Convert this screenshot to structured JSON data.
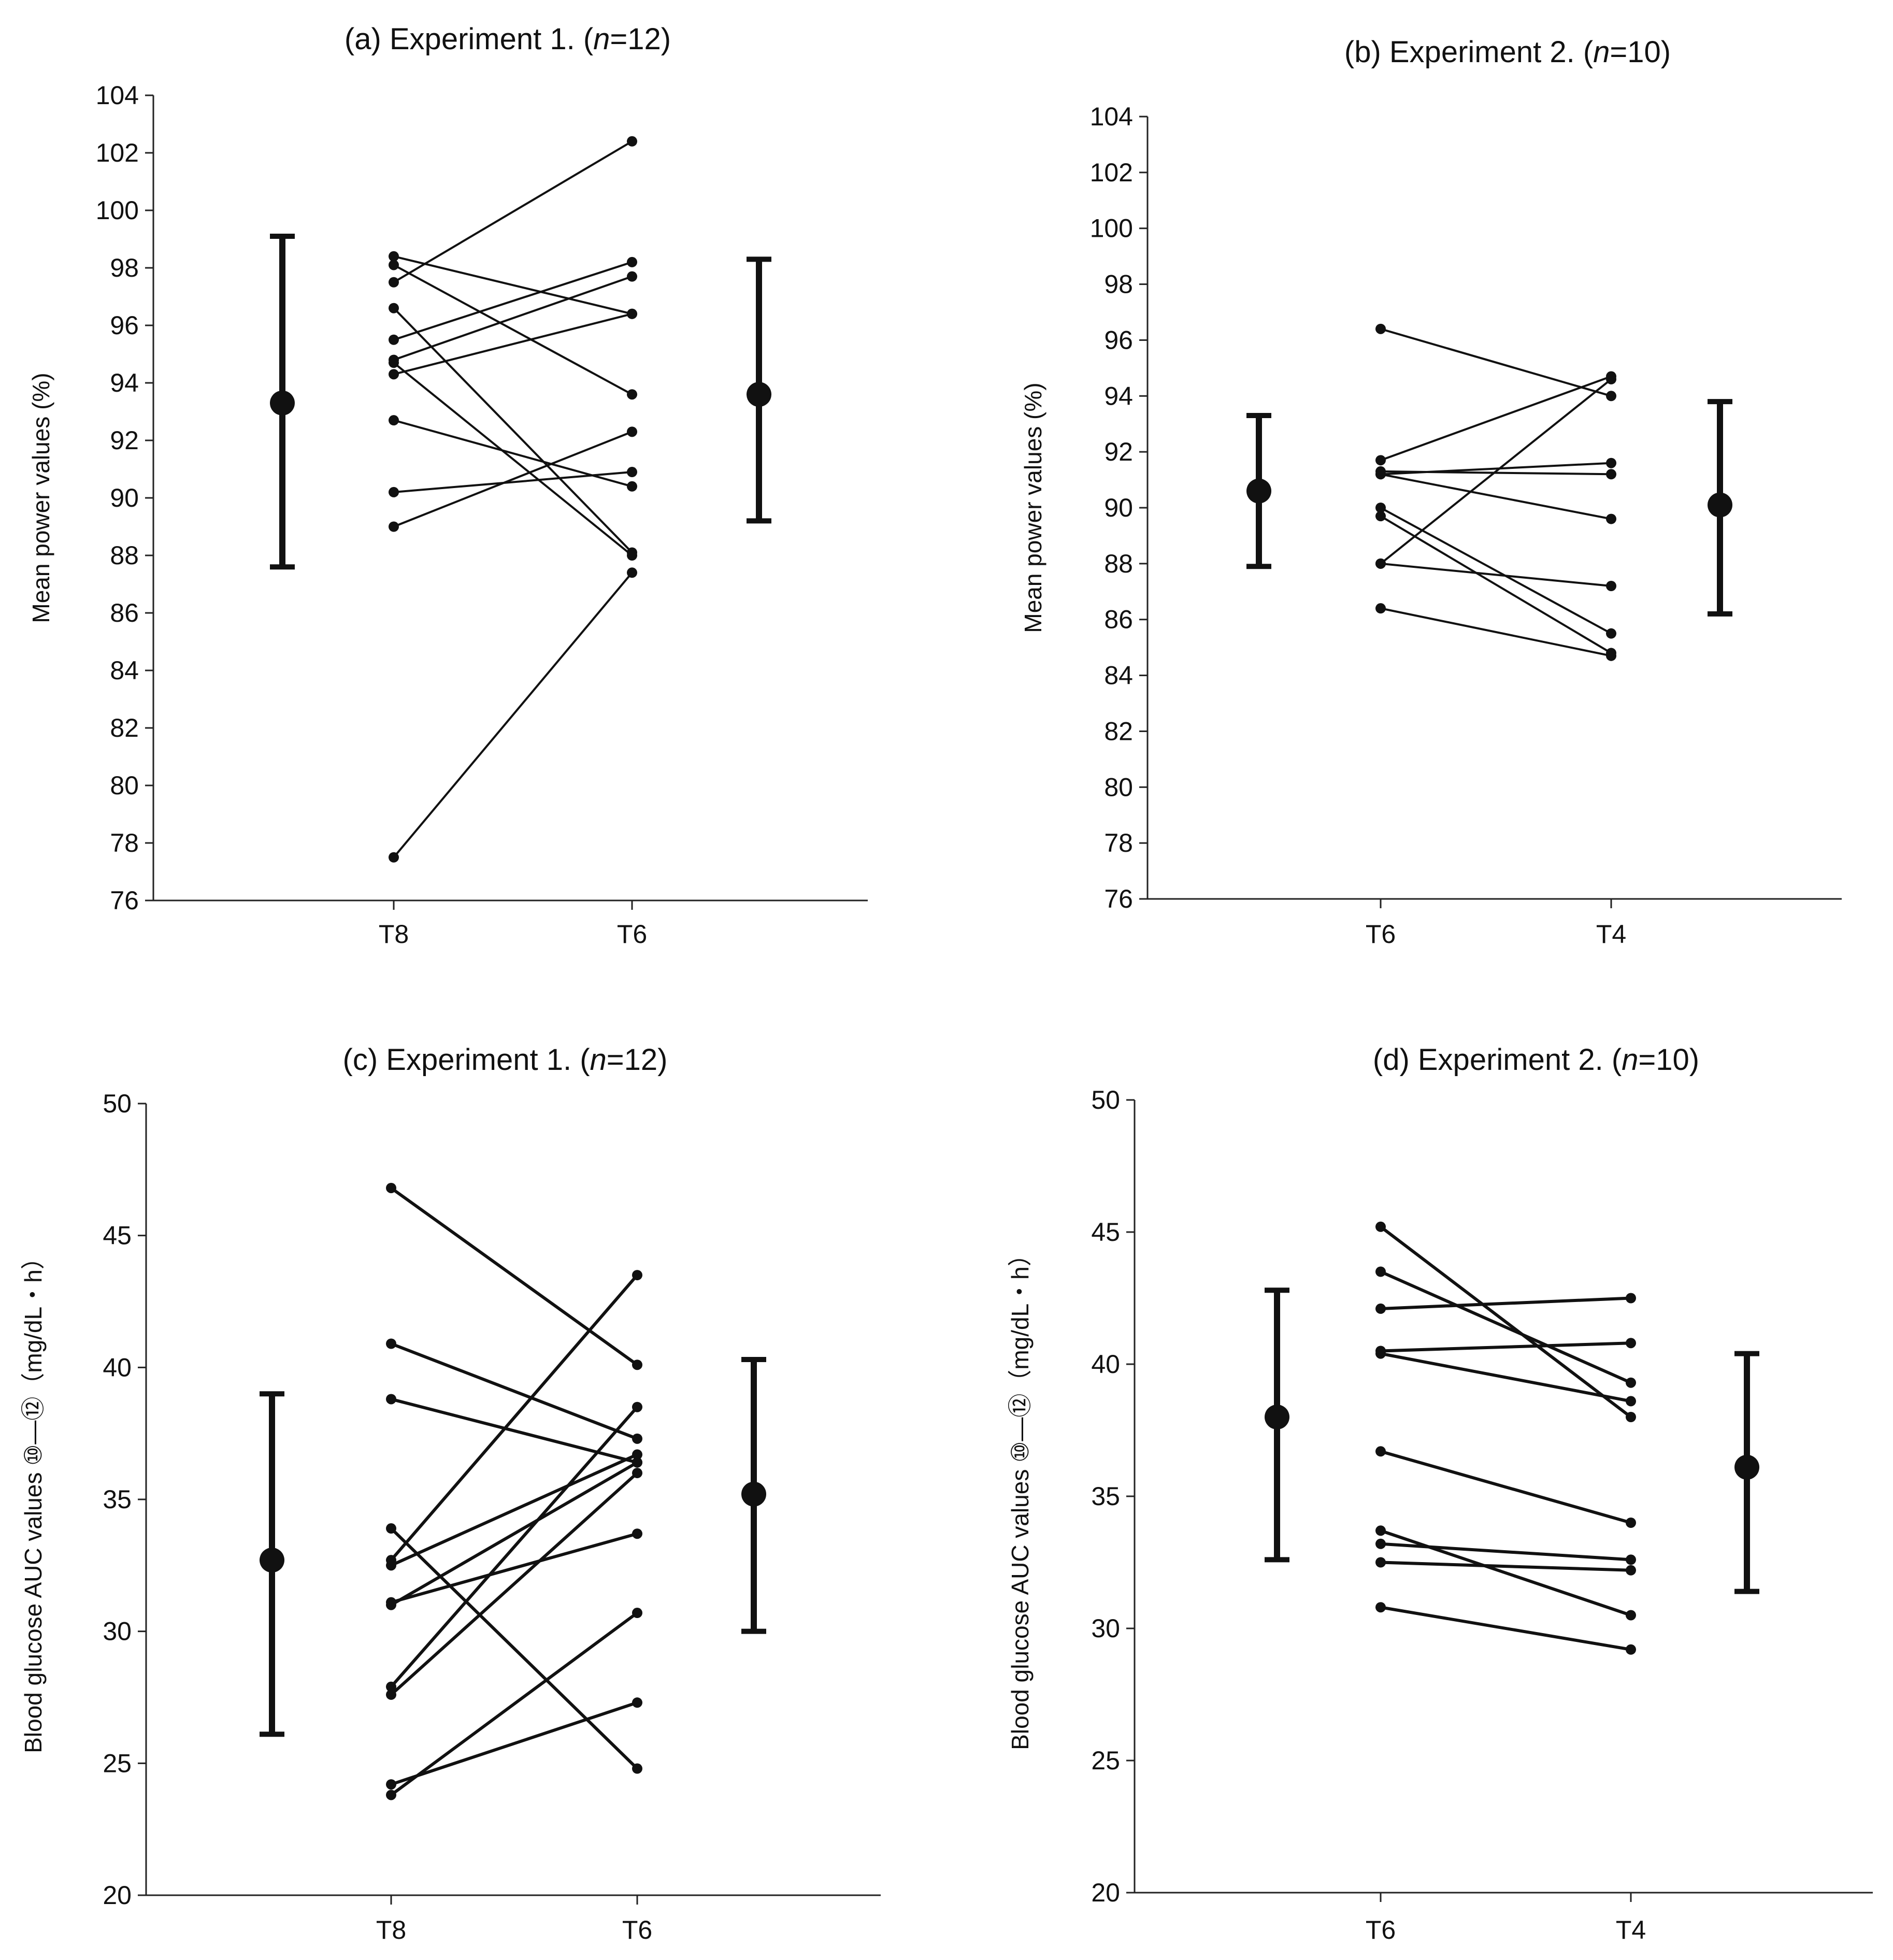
{
  "chart_data": [
    {
      "panel": "a",
      "type": "scatter",
      "title_prefix": "(a) Experiment 1. (",
      "title_italic": "n",
      "title_suffix": "=12)",
      "ylabel": "Mean power values (%)",
      "ylim": [
        76,
        104
      ],
      "yticks": [
        76,
        78,
        80,
        82,
        84,
        86,
        88,
        90,
        92,
        94,
        96,
        98,
        100,
        102,
        104
      ],
      "categories": [
        "T8",
        "T6"
      ],
      "pairs": [
        [
          97.5,
          102.4
        ],
        [
          98.4,
          96.4
        ],
        [
          98.1,
          93.6
        ],
        [
          96.6,
          88.1
        ],
        [
          95.5,
          98.2
        ],
        [
          94.8,
          97.7
        ],
        [
          94.3,
          96.4
        ],
        [
          94.7,
          88.0
        ],
        [
          92.7,
          90.4
        ],
        [
          90.2,
          90.9
        ],
        [
          89.0,
          92.3
        ],
        [
          77.5,
          87.4
        ]
      ],
      "summary": [
        {
          "position": "left",
          "mean": 93.3,
          "lower": 87.6,
          "upper": 99.1
        },
        {
          "position": "right",
          "mean": 93.6,
          "lower": 89.2,
          "upper": 98.3
        }
      ]
    },
    {
      "panel": "b",
      "type": "scatter",
      "title_prefix": "(b)  Experiment 2. (",
      "title_italic": "n",
      "title_suffix": "=10)",
      "ylabel": "Mean power values (%)",
      "ylim": [
        76,
        104
      ],
      "yticks": [
        76,
        78,
        80,
        82,
        84,
        86,
        88,
        90,
        92,
        94,
        96,
        98,
        100,
        102,
        104
      ],
      "categories": [
        "T6",
        "T4"
      ],
      "pairs": [
        [
          96.4,
          94.0
        ],
        [
          91.7,
          94.7
        ],
        [
          91.2,
          91.6
        ],
        [
          91.3,
          91.2
        ],
        [
          91.2,
          89.6
        ],
        [
          90.0,
          85.5
        ],
        [
          89.7,
          84.8
        ],
        [
          88.0,
          94.6
        ],
        [
          88.0,
          87.2
        ],
        [
          86.4,
          84.7
        ]
      ],
      "summary": [
        {
          "position": "left",
          "mean": 90.6,
          "lower": 87.9,
          "upper": 93.3
        },
        {
          "position": "right",
          "mean": 90.1,
          "lower": 86.2,
          "upper": 93.8
        }
      ]
    },
    {
      "panel": "c",
      "type": "scatter",
      "title_prefix": "(c) Experiment 1. (",
      "title_italic": "n",
      "title_suffix": "=12)",
      "ylabel": "Blood glucose AUC values ⑩—⑫（mg/dL・h）",
      "ylim": [
        20,
        50
      ],
      "yticks": [
        20,
        25,
        30,
        35,
        40,
        45,
        50
      ],
      "categories": [
        "T8",
        "T6"
      ],
      "pairs": [
        [
          46.8,
          40.1
        ],
        [
          40.9,
          37.3
        ],
        [
          38.8,
          36.4
        ],
        [
          33.9,
          24.8
        ],
        [
          32.7,
          43.5
        ],
        [
          32.5,
          36.7
        ],
        [
          31.1,
          33.7
        ],
        [
          31.0,
          36.4
        ],
        [
          27.9,
          38.5
        ],
        [
          27.6,
          36.0
        ],
        [
          24.2,
          27.3
        ],
        [
          23.8,
          30.7
        ]
      ],
      "summary": [
        {
          "position": "left",
          "mean": 32.7,
          "lower": 26.1,
          "upper": 39.0
        },
        {
          "position": "right",
          "mean": 35.2,
          "lower": 30.0,
          "upper": 40.3
        }
      ]
    },
    {
      "panel": "d",
      "type": "scatter",
      "title_prefix": "(d) Experiment 2. (",
      "title_italic": "n",
      "title_suffix": "=10)",
      "ylabel": "Blood glucose AUC values ⑩—⑫（mg/dL・h）",
      "ylim": [
        20,
        50
      ],
      "yticks": [
        20,
        25,
        30,
        35,
        40,
        45,
        50
      ],
      "categories": [
        "T6",
        "T4"
      ],
      "pairs": [
        [
          45.2,
          38.0
        ],
        [
          43.5,
          39.3
        ],
        [
          42.1,
          42.5
        ],
        [
          40.5,
          40.8
        ],
        [
          40.4,
          38.6
        ],
        [
          36.7,
          34.0
        ],
        [
          33.7,
          30.5
        ],
        [
          33.2,
          32.6
        ],
        [
          32.5,
          32.2
        ],
        [
          30.8,
          29.2
        ]
      ],
      "summary": [
        {
          "position": "left",
          "mean": 38.0,
          "lower": 32.6,
          "upper": 42.8
        },
        {
          "position": "right",
          "mean": 36.1,
          "lower": 31.4,
          "upper": 40.4
        }
      ]
    }
  ]
}
